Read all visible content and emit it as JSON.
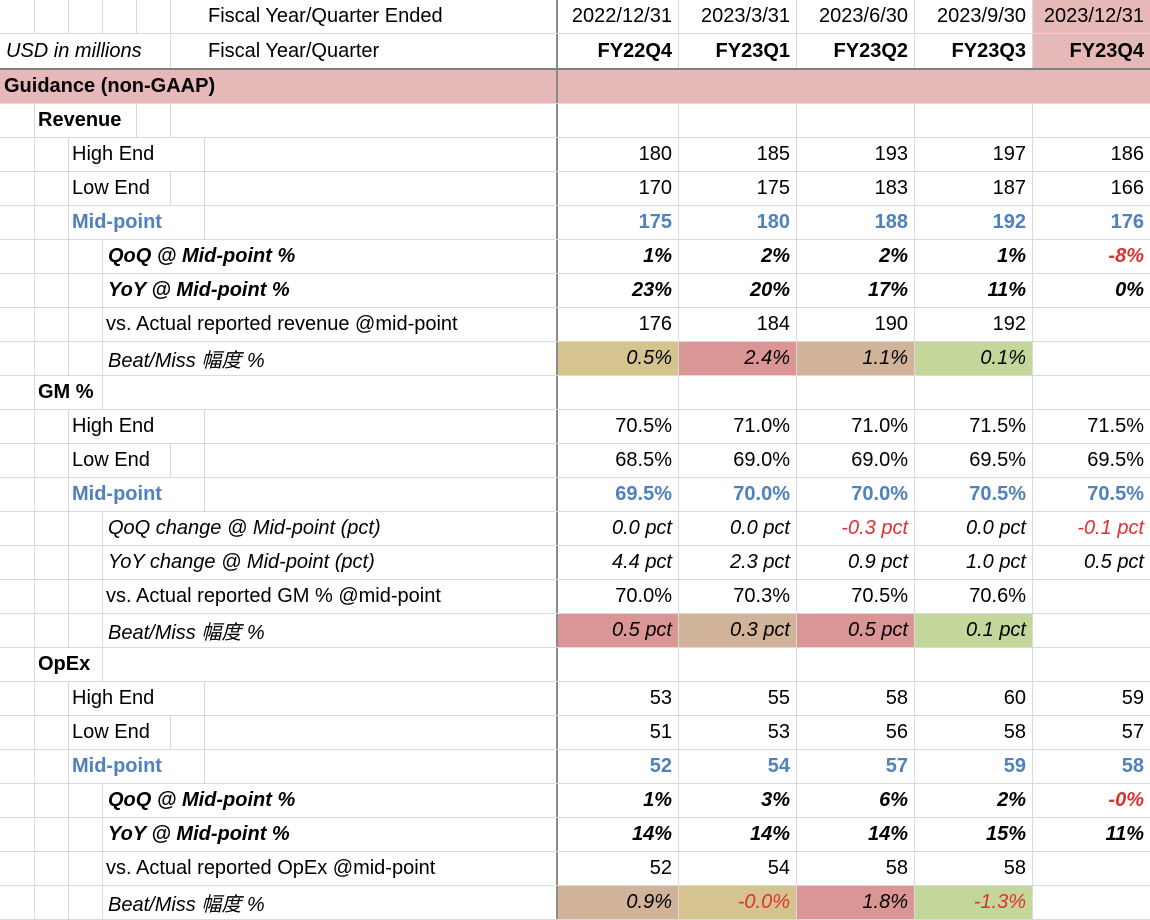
{
  "header": {
    "row1_label": "Fiscal Year/Quarter Ended",
    "row2_unit": "USD in millions",
    "row2_label": "Fiscal Year/Quarter",
    "dates": [
      "2022/12/31",
      "2023/3/31",
      "2023/6/30",
      "2023/9/30",
      "2023/12/31"
    ],
    "quarters": [
      "FY22Q4",
      "FY23Q1",
      "FY23Q2",
      "FY23Q3",
      "FY23Q4"
    ]
  },
  "section_title": "Guidance (non-GAAP)",
  "revenue": {
    "title": "Revenue",
    "high_label": "High End",
    "high": [
      "180",
      "185",
      "193",
      "197",
      "186"
    ],
    "low_label": "Low End",
    "low": [
      "170",
      "175",
      "183",
      "187",
      "166"
    ],
    "mid_label": "Mid-point",
    "mid": [
      "175",
      "180",
      "188",
      "192",
      "176"
    ],
    "qoq_label": "QoQ @ Mid-point %",
    "qoq": [
      "1%",
      "2%",
      "2%",
      "1%",
      "-8%"
    ],
    "yoy_label": "YoY @ Mid-point %",
    "yoy": [
      "23%",
      "20%",
      "17%",
      "11%",
      "0%"
    ],
    "actual_label": "vs. Actual reported revenue @mid-point",
    "actual": [
      "176",
      "184",
      "190",
      "192",
      ""
    ],
    "beat_label": "Beat/Miss 幅度 %",
    "beat": [
      "0.5%",
      "2.4%",
      "1.1%",
      "0.1%",
      ""
    ]
  },
  "gm": {
    "title": "GM %",
    "high_label": "High End",
    "high": [
      "70.5%",
      "71.0%",
      "71.0%",
      "71.5%",
      "71.5%"
    ],
    "low_label": "Low End",
    "low": [
      "68.5%",
      "69.0%",
      "69.0%",
      "69.5%",
      "69.5%"
    ],
    "mid_label": "Mid-point",
    "mid": [
      "69.5%",
      "70.0%",
      "70.0%",
      "70.5%",
      "70.5%"
    ],
    "qoq_label": "QoQ change @ Mid-point (pct)",
    "qoq": [
      "0.0 pct",
      "0.0 pct",
      "-0.3 pct",
      "0.0 pct",
      "-0.1 pct"
    ],
    "yoy_label": "YoY change @ Mid-point (pct)",
    "yoy": [
      "4.4 pct",
      "2.3 pct",
      "0.9 pct",
      "1.0 pct",
      "0.5 pct"
    ],
    "actual_label": "vs. Actual reported GM % @mid-point",
    "actual": [
      "70.0%",
      "70.3%",
      "70.5%",
      "70.6%",
      ""
    ],
    "beat_label": "Beat/Miss 幅度 %",
    "beat": [
      "0.5 pct",
      "0.3 pct",
      "0.5 pct",
      "0.1 pct",
      ""
    ]
  },
  "opex": {
    "title": "OpEx",
    "high_label": "High End",
    "high": [
      "53",
      "55",
      "58",
      "60",
      "59"
    ],
    "low_label": "Low End",
    "low": [
      "51",
      "53",
      "56",
      "58",
      "57"
    ],
    "mid_label": "Mid-point",
    "mid": [
      "52",
      "54",
      "57",
      "59",
      "58"
    ],
    "qoq_label": "QoQ @ Mid-point %",
    "qoq": [
      "1%",
      "3%",
      "6%",
      "2%",
      "-0%"
    ],
    "yoy_label": "YoY @ Mid-point %",
    "yoy": [
      "14%",
      "14%",
      "14%",
      "15%",
      "11%"
    ],
    "actual_label": "vs. Actual reported OpEx @mid-point",
    "actual": [
      "52",
      "54",
      "58",
      "58",
      ""
    ],
    "beat_label": "Beat/Miss 幅度 %",
    "beat": [
      "0.9%",
      "-0.0%",
      "1.8%",
      "-1.3%",
      ""
    ]
  },
  "colors": {
    "section_band": "#e6b8b7",
    "highlight_header": "#e6b8b7",
    "midpoint_blue": "#4f81bd",
    "negative_red": "#e03030",
    "beat_green": "#c4d79b",
    "beat_light_green": "#d8e4bc",
    "beat_red": "#da9694",
    "beat_tan": "#d0b398",
    "beat_khaki": "#d6c48f"
  }
}
